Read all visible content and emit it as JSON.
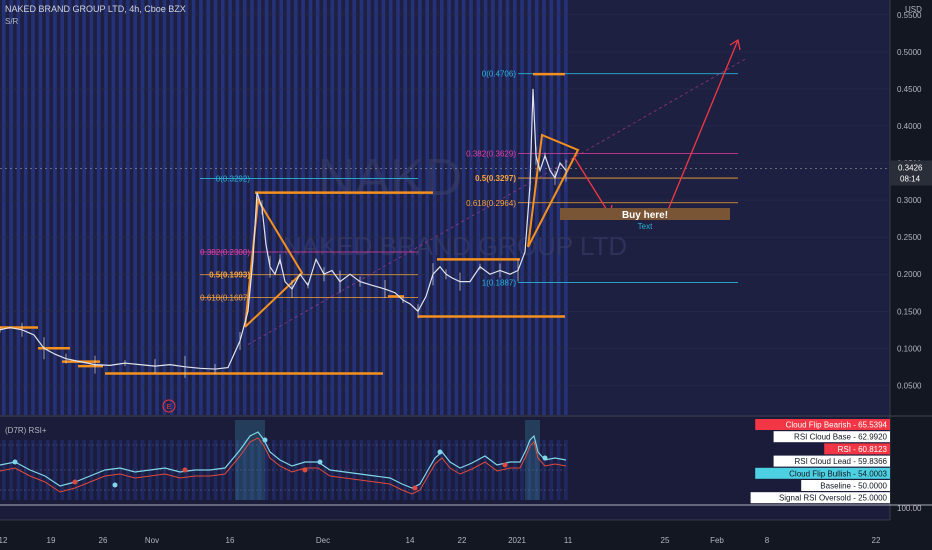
{
  "header": {
    "symbol_line": "NAKED BRAND GROUP LTD, 4h, Cboe BZX",
    "indicator_line": "S/R"
  },
  "rsi_panel": {
    "title": "(D7R) RSI+"
  },
  "watermark": {
    "ticker": "NAKD",
    "name": "NAKED BRAND GROUP LTD"
  },
  "annotations": {
    "buy_label": "Buy here!",
    "text_label": "Text",
    "earnings_marker": "E"
  },
  "colors": {
    "background": "#1e2042",
    "stripe": "#2b3fa8",
    "fib_blue": "#2bb3d6",
    "fib_magenta": "#e43fa0",
    "fib_orange": "#f7a33a",
    "sr_orange": "#f5901e",
    "price_white": "#e0e3eb",
    "arrow_red": "#f23645",
    "rsi_cyan": "#7fd6e8",
    "rsi_red": "#e0493c",
    "buy_box": "#7a5535"
  },
  "chart_data": {
    "type": "line",
    "title": "NAKED BRAND GROUP LTD, 4h, Cboe BZX",
    "currency": "USD",
    "y_ticks": [
      "0.5500",
      "0.5000",
      "0.4500",
      "0.4000",
      "0.3500",
      "0.3000",
      "0.2500",
      "0.2000",
      "0.1500",
      "0.1000",
      "0.0500"
    ],
    "ylim": [
      0.01,
      0.57
    ],
    "x_ticks": [
      "12",
      "19",
      "26",
      "Nov",
      "16",
      "Dec",
      "14",
      "22",
      "2021",
      "11",
      "25",
      "Feb",
      "8",
      "22"
    ],
    "current_price": "0.3426",
    "countdown": "08:14",
    "price_path": [
      [
        0,
        0.125
      ],
      [
        10,
        0.128
      ],
      [
        22,
        0.125
      ],
      [
        34,
        0.118
      ],
      [
        44,
        0.1
      ],
      [
        55,
        0.092
      ],
      [
        66,
        0.086
      ],
      [
        80,
        0.082
      ],
      [
        95,
        0.078
      ],
      [
        110,
        0.077
      ],
      [
        125,
        0.08
      ],
      [
        140,
        0.078
      ],
      [
        155,
        0.076
      ],
      [
        170,
        0.078
      ],
      [
        185,
        0.075
      ],
      [
        200,
        0.073
      ],
      [
        215,
        0.072
      ],
      [
        228,
        0.074
      ],
      [
        240,
        0.11
      ],
      [
        248,
        0.15
      ],
      [
        253,
        0.22
      ],
      [
        257,
        0.31
      ],
      [
        262,
        0.29
      ],
      [
        266,
        0.24
      ],
      [
        270,
        0.21
      ],
      [
        275,
        0.2
      ],
      [
        280,
        0.22
      ],
      [
        285,
        0.19
      ],
      [
        292,
        0.18
      ],
      [
        300,
        0.2
      ],
      [
        308,
        0.185
      ],
      [
        316,
        0.22
      ],
      [
        324,
        0.2
      ],
      [
        332,
        0.205
      ],
      [
        340,
        0.19
      ],
      [
        350,
        0.2
      ],
      [
        360,
        0.19
      ],
      [
        372,
        0.185
      ],
      [
        385,
        0.18
      ],
      [
        395,
        0.175
      ],
      [
        403,
        0.165
      ],
      [
        410,
        0.16
      ],
      [
        418,
        0.15
      ],
      [
        426,
        0.17
      ],
      [
        433,
        0.2
      ],
      [
        440,
        0.21
      ],
      [
        446,
        0.2
      ],
      [
        452,
        0.195
      ],
      [
        460,
        0.19
      ],
      [
        470,
        0.19
      ],
      [
        480,
        0.21
      ],
      [
        490,
        0.2
      ],
      [
        500,
        0.205
      ],
      [
        510,
        0.2
      ],
      [
        518,
        0.205
      ],
      [
        525,
        0.23
      ],
      [
        530,
        0.32
      ],
      [
        533,
        0.45
      ],
      [
        536,
        0.36
      ],
      [
        540,
        0.34
      ],
      [
        545,
        0.36
      ],
      [
        550,
        0.34
      ],
      [
        555,
        0.33
      ],
      [
        560,
        0.35
      ],
      [
        566,
        0.34
      ]
    ],
    "fib_levels_dec": [
      {
        "label": "0(0.3292)",
        "value": 0.3292,
        "color": "#2bb3d6"
      },
      {
        "label": "0.382(0.2300)",
        "value": 0.23,
        "color": "#e43fa0"
      },
      {
        "label": "0.5(0.1993)",
        "value": 0.1993,
        "color": "#f7a33a"
      },
      {
        "label": "0.618(0.1687)",
        "value": 0.1687,
        "color": "#f7a33a"
      }
    ],
    "fib_levels_jan": [
      {
        "label": "0(0.4706)",
        "value": 0.4706,
        "color": "#2bb3d6"
      },
      {
        "label": "0.382(0.3629)",
        "value": 0.3629,
        "color": "#e43fa0"
      },
      {
        "label": "0.5(0.3297)",
        "value": 0.3297,
        "color": "#f7a33a"
      },
      {
        "label": "0.618(0.2964)",
        "value": 0.2964,
        "color": "#f7a33a"
      },
      {
        "label": "1(0.1887)",
        "value": 0.1887,
        "color": "#2bb3d6"
      }
    ],
    "rsi": {
      "labels": [
        {
          "text": "Cloud Flip Bearish",
          "value": "65.5394",
          "bg": "#f23645",
          "fg": "#ffffff"
        },
        {
          "text": "RSI Cloud Base",
          "value": "62.9920",
          "bg": "#ffffff",
          "fg": "#131722"
        },
        {
          "text": "RSI",
          "value": "60.8123",
          "bg": "#f23645",
          "fg": "#ffffff"
        },
        {
          "text": "RSI Cloud Lead",
          "value": "59.8366",
          "bg": "#ffffff",
          "fg": "#131722"
        },
        {
          "text": "Cloud Flip Bullish",
          "value": "54.0003",
          "bg": "#4dd0e1",
          "fg": "#131722"
        },
        {
          "text": "Baseline",
          "value": "50.0000",
          "bg": "#ffffff",
          "fg": "#131722"
        },
        {
          "text": "Signal RSI Oversold",
          "value": "25.0000",
          "bg": "#ffffff",
          "fg": "#131722"
        }
      ],
      "axis_label": "100.00"
    }
  }
}
